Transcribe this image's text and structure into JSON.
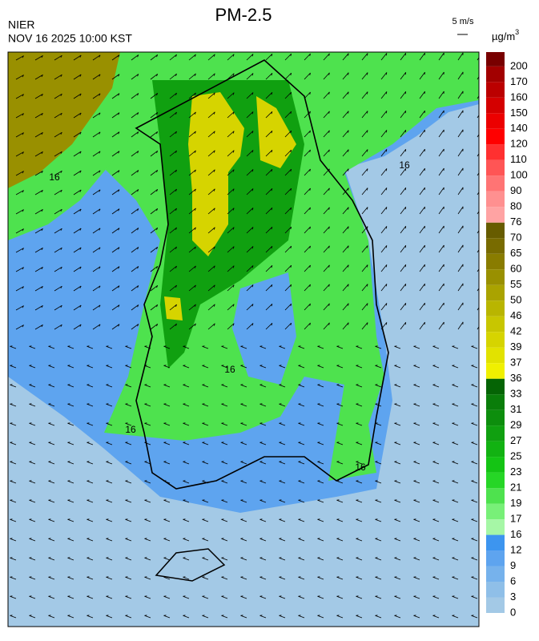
{
  "header": {
    "agency": "NIER",
    "title": "PM-2.5",
    "timestamp": "NOV 16 2025 10:00 KST",
    "wind_scale": "5 m/s"
  },
  "colorbar": {
    "unit": "µg/m",
    "unit_sup": "3",
    "levels": [
      0,
      3,
      6,
      9,
      12,
      16,
      17,
      19,
      21,
      23,
      25,
      27,
      29,
      31,
      33,
      36,
      37,
      39,
      42,
      46,
      50,
      55,
      60,
      65,
      70,
      76,
      80,
      90,
      100,
      110,
      120,
      140,
      150,
      160,
      170,
      200
    ],
    "colors": [
      "#a3c9e6",
      "#8fbfe8",
      "#76b2ec",
      "#5ea4ef",
      "#3d95ef",
      "#a6f7a6",
      "#78f078",
      "#4ee24e",
      "#26d626",
      "#14c414",
      "#12b212",
      "#10a010",
      "#0d8e0d",
      "#0a7d0a",
      "#056405",
      "#f0f000",
      "#e2e200",
      "#d6d400",
      "#c8c600",
      "#b9b500",
      "#aaa300",
      "#999000",
      "#897c00",
      "#786b00",
      "#675c00",
      "#ffa3a3",
      "#ff9090",
      "#ff7474",
      "#ff5555",
      "#ff3030",
      "#ff0000",
      "#ec0000",
      "#d40000",
      "#bb0000",
      "#a20000",
      "#780000"
    ]
  },
  "contour_labels": [
    "16",
    "16",
    "16",
    "16",
    "16"
  ]
}
